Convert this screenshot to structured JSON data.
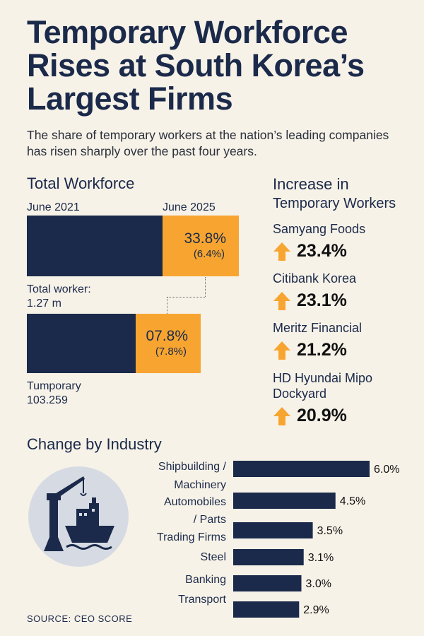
{
  "title": "Temporary Workforce Rises at South Korea’s Largest Firms",
  "subtitle": "The share of temporary workers at the nation’s leading companies has risen sharply over the past four years.",
  "workforce": {
    "heading": "Total Workforce",
    "label_2021": "June 2021",
    "label_2025": "June 2025",
    "top_pct": "33.8%",
    "top_sub": "(6.4%)",
    "top_caption": "Total worker:",
    "top_value": "1.27 m",
    "bottom_pct": "07.8%",
    "bottom_sub": "(7.8%)",
    "bottom_caption": "Tumporary",
    "bottom_value": "103.259"
  },
  "increase": {
    "heading_line1": "Increase in",
    "heading_line2": "Temporary Workers",
    "items": [
      {
        "company": "Samyang Foods",
        "value": "23.4%"
      },
      {
        "company": "Citibank Korea",
        "value": "23.1%"
      },
      {
        "company": "Meritz Financial",
        "value": "21.2%"
      },
      {
        "company_line1": "HD Hyundai Mipo",
        "company_line2": "Dockyard",
        "value": "20.9%"
      }
    ]
  },
  "industry": {
    "heading": "Change by Industry",
    "icon": "shipyard-crane-ship-icon"
  },
  "chart_data": {
    "type": "bar",
    "orientation": "horizontal",
    "title": "Change by Industry",
    "categories": [
      "Shipbuilding / Machinery",
      "Automobiles / Parts",
      "Trading Firms",
      "Steel",
      "Banking",
      "Transport"
    ],
    "values": [
      6.0,
      4.5,
      3.5,
      3.1,
      3.0,
      2.9
    ],
    "value_labels": [
      "6.0%",
      "4.5%",
      "3.5%",
      "3.1%",
      "3.0%",
      "2.9%"
    ],
    "category_label_lines": [
      [
        "Shipbuilding /",
        "Machinery"
      ],
      [
        "Automobiles",
        "/ Parts"
      ],
      [
        "Trading Firms"
      ],
      [
        "Steel"
      ],
      [
        "Banking"
      ],
      [
        "Transport"
      ]
    ],
    "xlim": [
      0,
      6.0
    ],
    "color": "#1b2a4a"
  },
  "source": "SOURCE: CEO SCORE",
  "colors": {
    "navy": "#1b2a4a",
    "orange": "#f7a530",
    "background": "#f7f2e8"
  }
}
